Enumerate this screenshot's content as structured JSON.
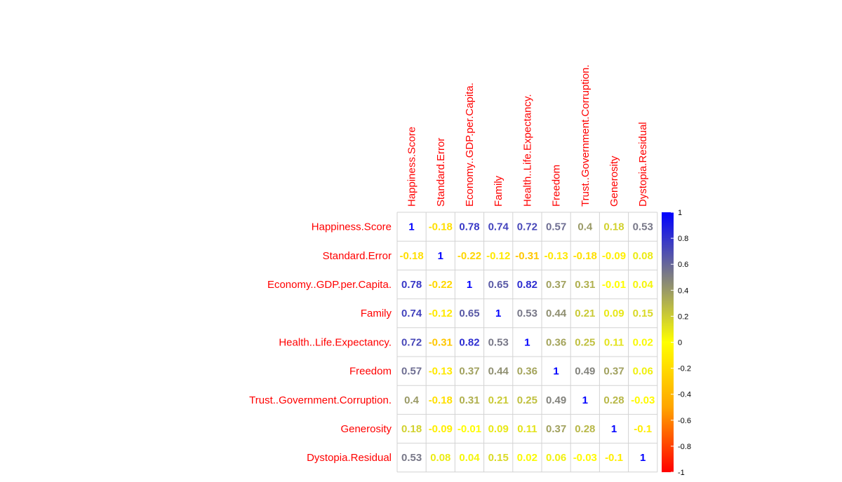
{
  "chart_data": {
    "type": "heatmap",
    "variables": [
      "Happiness.Score",
      "Standard.Error",
      "Economy..GDP.per.Capita.",
      "Family",
      "Health..Life.Expectancy.",
      "Freedom",
      "Trust..Government.Corruption.",
      "Generosity",
      "Dystopia.Residual"
    ],
    "matrix": [
      [
        1,
        -0.18,
        0.78,
        0.74,
        0.72,
        0.57,
        0.4,
        0.18,
        0.53
      ],
      [
        -0.18,
        1,
        -0.22,
        -0.12,
        -0.31,
        -0.13,
        -0.18,
        -0.09,
        0.08
      ],
      [
        0.78,
        -0.22,
        1,
        0.65,
        0.82,
        0.37,
        0.31,
        -0.01,
        0.04
      ],
      [
        0.74,
        -0.12,
        0.65,
        1,
        0.53,
        0.44,
        0.21,
        0.09,
        0.15
      ],
      [
        0.72,
        -0.31,
        0.82,
        0.53,
        1,
        0.36,
        0.25,
        0.11,
        0.02
      ],
      [
        0.57,
        -0.13,
        0.37,
        0.44,
        0.36,
        1,
        0.49,
        0.37,
        0.06
      ],
      [
        0.4,
        -0.18,
        0.31,
        0.21,
        0.25,
        0.49,
        1,
        0.28,
        -0.03
      ],
      [
        0.18,
        -0.09,
        -0.01,
        0.09,
        0.11,
        0.37,
        0.28,
        1,
        -0.1
      ],
      [
        0.53,
        0.08,
        0.04,
        0.15,
        0.02,
        0.06,
        -0.03,
        -0.1,
        1
      ]
    ],
    "colorbar": {
      "range": [
        -1,
        1
      ],
      "ticks": [
        "1",
        "0.8",
        "0.6",
        "0.4",
        "0.2",
        "0",
        "-0.2",
        "-0.4",
        "-0.6",
        "-0.8",
        "-1"
      ],
      "colors": [
        "#ff0000",
        "#ffa500",
        "#ffff00",
        "#808080",
        "#0000ff"
      ]
    },
    "label_color": "#ff0000",
    "grid_color": "#d3d3d3"
  }
}
